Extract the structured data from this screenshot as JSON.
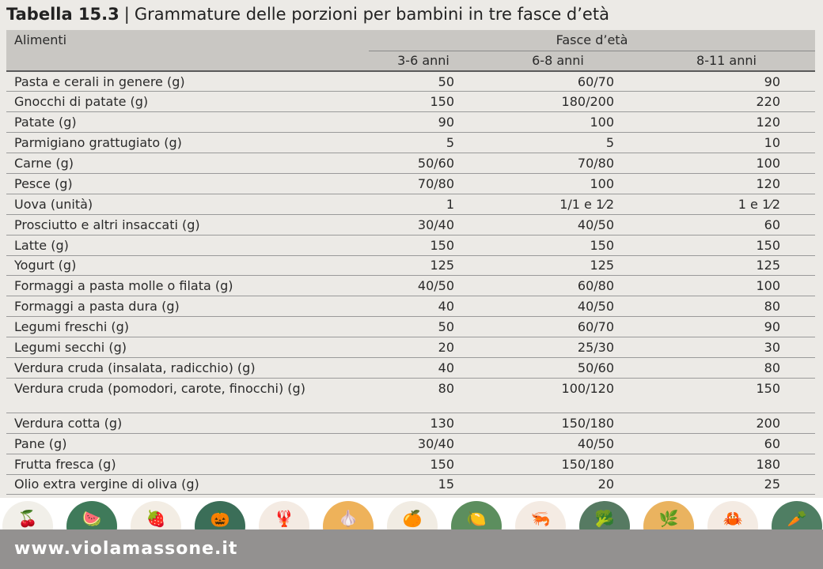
{
  "title": {
    "number": "Tabella 15.3",
    "separator": "|",
    "text": "Grammature delle porzioni per bambini in tre fasce d’età"
  },
  "table": {
    "col_food": "Alimenti",
    "group_header": "Fasce d’età",
    "age_groups": [
      "3-6 anni",
      "6-8 anni",
      "8-11 anni"
    ],
    "rows": [
      {
        "food": "Pasta e cerali in genere (g)",
        "a": "50",
        "b": "60/70",
        "c": "90"
      },
      {
        "food": "Gnocchi di patate (g)",
        "a": "150",
        "b": "180/200",
        "c": "220"
      },
      {
        "food": "Patate (g)",
        "a": "90",
        "b": "100",
        "c": "120"
      },
      {
        "food": "Parmigiano grattugiato (g)",
        "a": "5",
        "b": "5",
        "c": "10"
      },
      {
        "food": "Carne (g)",
        "a": "50/60",
        "b": "70/80",
        "c": "100"
      },
      {
        "food": "Pesce (g)",
        "a": "70/80",
        "b": "100",
        "c": "120"
      },
      {
        "food": "Uova (unità)",
        "a": "1",
        "b": "1/1 e 1⁄2",
        "c": "1 e 1⁄2"
      },
      {
        "food": "Prosciutto e altri insaccati (g)",
        "a": "30/40",
        "b": "40/50",
        "c": "60"
      },
      {
        "food": "Latte (g)",
        "a": "150",
        "b": "150",
        "c": "150"
      },
      {
        "food": "Yogurt (g)",
        "a": "125",
        "b": "125",
        "c": "125"
      },
      {
        "food": "Formaggi a pasta molle o filata (g)",
        "a": "40/50",
        "b": "60/80",
        "c": "100"
      },
      {
        "food": "Formaggi a pasta dura (g)",
        "a": "40",
        "b": "40/50",
        "c": "80"
      },
      {
        "food": "Legumi freschi (g)",
        "a": "50",
        "b": "60/70",
        "c": "90"
      },
      {
        "food": "Legumi secchi (g)",
        "a": "20",
        "b": "25/30",
        "c": "30"
      },
      {
        "food": "Verdura cruda (insalata, radicchio) (g)",
        "a": "40",
        "b": "50/60",
        "c": "80"
      },
      {
        "food": "Verdura cruda (pomodori, carote, finocchi) (g)",
        "a": "80",
        "b": "100/120",
        "c": "150",
        "tall": true
      },
      {
        "food": "Verdura cotta (g)",
        "a": "130",
        "b": "150/180",
        "c": "200"
      },
      {
        "food": "Pane (g)",
        "a": "30/40",
        "b": "40/50",
        "c": "60"
      },
      {
        "food": "Frutta fresca (g)",
        "a": "150",
        "b": "150/180",
        "c": "180"
      },
      {
        "food": "Olio extra vergine di oliva (g)",
        "a": "15",
        "b": "20",
        "c": "25"
      }
    ]
  },
  "icons": [
    {
      "name": "cherries-icon",
      "glyph": "🍒",
      "color": "#f1efe9"
    },
    {
      "name": "watermelon-icon",
      "glyph": "🍉",
      "color": "#3f7a5a"
    },
    {
      "name": "strawberry-icon",
      "glyph": "🍓",
      "color": "#f3ede4"
    },
    {
      "name": "pumpkin-icon",
      "glyph": "🎃",
      "color": "#3b6e58"
    },
    {
      "name": "lobster-icon",
      "glyph": "🦞",
      "color": "#f4ebe3"
    },
    {
      "name": "garlic-icon",
      "glyph": "🧄",
      "color": "#eeb25a"
    },
    {
      "name": "orange-icon",
      "glyph": "🍊",
      "color": "#f1ece3"
    },
    {
      "name": "lemon-slice-icon",
      "glyph": "🍋",
      "color": "#5c8e5e"
    },
    {
      "name": "shrimp-icon",
      "glyph": "🦐",
      "color": "#f4ebe3"
    },
    {
      "name": "broccoli-icon",
      "glyph": "🥦",
      "color": "#567a62"
    },
    {
      "name": "leaf-icon",
      "glyph": "🌿",
      "color": "#eab35f"
    },
    {
      "name": "crab-icon",
      "glyph": "🦀",
      "color": "#f4ebe3"
    },
    {
      "name": "radish-icon",
      "glyph": "🥕",
      "color": "#4f7e63"
    }
  ],
  "footer": {
    "url": "www.violamassone.it"
  }
}
